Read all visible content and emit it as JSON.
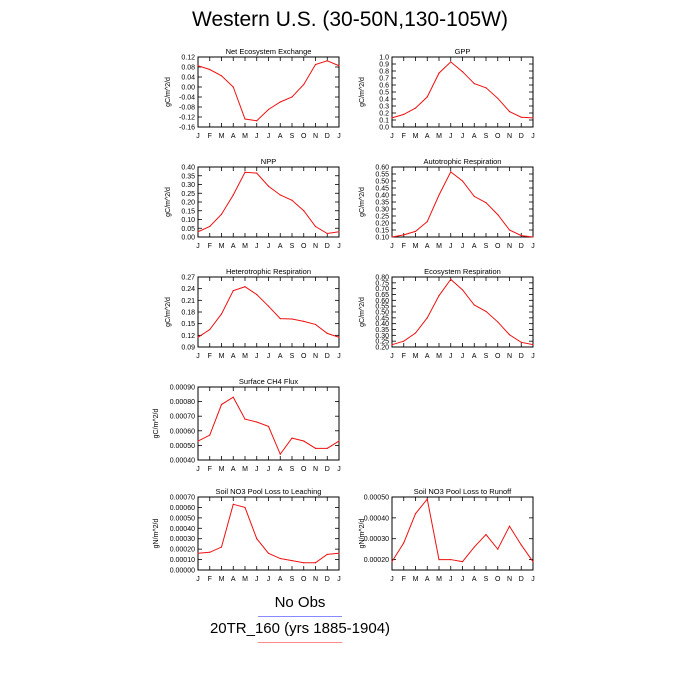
{
  "title": "Western U.S. (30-50N,130-105W)",
  "months": [
    "J",
    "F",
    "M",
    "A",
    "M",
    "J",
    "J",
    "A",
    "S",
    "O",
    "N",
    "D",
    "J"
  ],
  "legend": {
    "obs_label": "No Obs",
    "run_label": "20TR_160 (yrs 1885-1904)",
    "obs_color": "#8888ff",
    "run_color": "#ff8888"
  },
  "line_color": "#ee1111",
  "chart_data": [
    {
      "type": "line",
      "title": "Net Ecosystem Exchange",
      "ylabel": "gC/m^2/d",
      "ylim": [
        -0.16,
        0.12
      ],
      "yticks": [
        "0.12",
        "0.08",
        "0.04",
        "0.00",
        "-0.04",
        "-0.08",
        "-0.12",
        "-0.16"
      ],
      "ytick_values": [
        0.12,
        0.08,
        0.04,
        0.0,
        -0.04,
        -0.08,
        -0.12,
        -0.16
      ],
      "values": [
        0.085,
        0.07,
        0.045,
        0.0,
        -0.128,
        -0.135,
        -0.09,
        -0.06,
        -0.04,
        0.01,
        0.09,
        0.105,
        0.085
      ]
    },
    {
      "type": "line",
      "title": "GPP",
      "ylabel": "gC/m^2/d",
      "ylim": [
        0.0,
        1.0
      ],
      "yticks": [
        "1.0",
        "0.9",
        "0.8",
        "0.7",
        "0.6",
        "0.5",
        "0.4",
        "0.3",
        "0.2",
        "0.1",
        "0.0"
      ],
      "ytick_values": [
        1.0,
        0.9,
        0.8,
        0.7,
        0.6,
        0.5,
        0.4,
        0.3,
        0.2,
        0.1,
        0.0
      ],
      "values": [
        0.13,
        0.18,
        0.27,
        0.43,
        0.77,
        0.93,
        0.79,
        0.62,
        0.56,
        0.41,
        0.22,
        0.14,
        0.13
      ]
    },
    {
      "type": "line",
      "title": "NPP",
      "ylabel": "gC/m^2/d",
      "ylim": [
        0.0,
        0.4
      ],
      "yticks": [
        "0.40",
        "0.35",
        "0.30",
        "0.25",
        "0.20",
        "0.15",
        "0.10",
        "0.05",
        "0.00"
      ],
      "ytick_values": [
        0.4,
        0.35,
        0.3,
        0.25,
        0.2,
        0.15,
        0.1,
        0.05,
        0.0
      ],
      "values": [
        0.03,
        0.06,
        0.13,
        0.24,
        0.37,
        0.365,
        0.29,
        0.24,
        0.21,
        0.15,
        0.06,
        0.02,
        0.03
      ]
    },
    {
      "type": "line",
      "title": "Autotrophic Respiration",
      "ylabel": "gC/m^2/d",
      "ylim": [
        0.1,
        0.6
      ],
      "yticks": [
        "0.60",
        "0.55",
        "0.50",
        "0.45",
        "0.40",
        "0.35",
        "0.30",
        "0.25",
        "0.20",
        "0.15",
        "0.10"
      ],
      "ytick_values": [
        0.6,
        0.55,
        0.5,
        0.45,
        0.4,
        0.35,
        0.3,
        0.25,
        0.2,
        0.15,
        0.1
      ],
      "values": [
        0.1,
        0.115,
        0.14,
        0.21,
        0.4,
        0.565,
        0.5,
        0.39,
        0.345,
        0.26,
        0.15,
        0.11,
        0.1
      ]
    },
    {
      "type": "line",
      "title": "Heterotrophic Respiration",
      "ylabel": "gC/m^2/d",
      "ylim": [
        0.09,
        0.27
      ],
      "yticks": [
        "0.27",
        "0.24",
        "0.21",
        "0.18",
        "0.15",
        "0.12",
        "0.09"
      ],
      "ytick_values": [
        0.27,
        0.24,
        0.21,
        0.18,
        0.15,
        0.12,
        0.09
      ],
      "values": [
        0.115,
        0.135,
        0.175,
        0.235,
        0.245,
        0.225,
        0.195,
        0.163,
        0.162,
        0.156,
        0.148,
        0.125,
        0.115
      ]
    },
    {
      "type": "line",
      "title": "Ecosystem Respiration",
      "ylabel": "gC/m^2/d",
      "ylim": [
        0.2,
        0.8
      ],
      "yticks": [
        "0.80",
        "0.75",
        "0.70",
        "0.65",
        "0.60",
        "0.55",
        "0.50",
        "0.45",
        "0.40",
        "0.35",
        "0.30",
        "0.25",
        "0.20"
      ],
      "ytick_values": [
        0.8,
        0.75,
        0.7,
        0.65,
        0.6,
        0.55,
        0.5,
        0.45,
        0.4,
        0.35,
        0.3,
        0.25,
        0.2
      ],
      "values": [
        0.22,
        0.25,
        0.32,
        0.45,
        0.64,
        0.78,
        0.69,
        0.56,
        0.505,
        0.415,
        0.305,
        0.24,
        0.22
      ]
    },
    {
      "type": "line",
      "title": "Surface CH4 Flux",
      "ylabel": "gC/m^2/d",
      "ylim": [
        0.0004,
        0.0009
      ],
      "yticks": [
        "0.00090",
        "0.00080",
        "0.00070",
        "0.00060",
        "0.00050",
        "0.00040"
      ],
      "ytick_values": [
        0.0009,
        0.0008,
        0.0007,
        0.0006,
        0.0005,
        0.0004
      ],
      "values": [
        0.00053,
        0.00057,
        0.00078,
        0.00083,
        0.00068,
        0.00066,
        0.00063,
        0.00044,
        0.00055,
        0.00053,
        0.00048,
        0.00048,
        0.00053
      ]
    },
    {
      "type": "line",
      "title": "Soil NO3 Pool Loss to Leaching",
      "ylabel": "gN/m^2/d",
      "ylim": [
        0.0,
        0.0007
      ],
      "yticks": [
        "0.00070",
        "0.00060",
        "0.00050",
        "0.00040",
        "0.00030",
        "0.00020",
        "0.00010",
        "0.00000"
      ],
      "ytick_values": [
        0.0007,
        0.0006,
        0.0005,
        0.0004,
        0.0003,
        0.0002,
        0.0001,
        0.0
      ],
      "values": [
        0.00016,
        0.00017,
        0.00022,
        0.00063,
        0.0006,
        0.0003,
        0.00016,
        0.00011,
        9e-05,
        7e-05,
        7e-05,
        0.00015,
        0.00016
      ]
    },
    {
      "type": "line",
      "title": "Soil NO3 Pool Loss to Runoff",
      "ylabel": "gN/m^2/d",
      "ylim": [
        0.00015,
        0.0005
      ],
      "yticks": [
        "0.00050",
        "0.00040",
        "0.00030",
        "0.00020"
      ],
      "ytick_values": [
        0.0005,
        0.0004,
        0.0003,
        0.0002
      ],
      "values": [
        0.00019,
        0.00028,
        0.00042,
        0.00049,
        0.0002,
        0.0002,
        0.00019,
        0.00026,
        0.00032,
        0.00025,
        0.00036,
        0.00027,
        0.00019
      ]
    }
  ]
}
